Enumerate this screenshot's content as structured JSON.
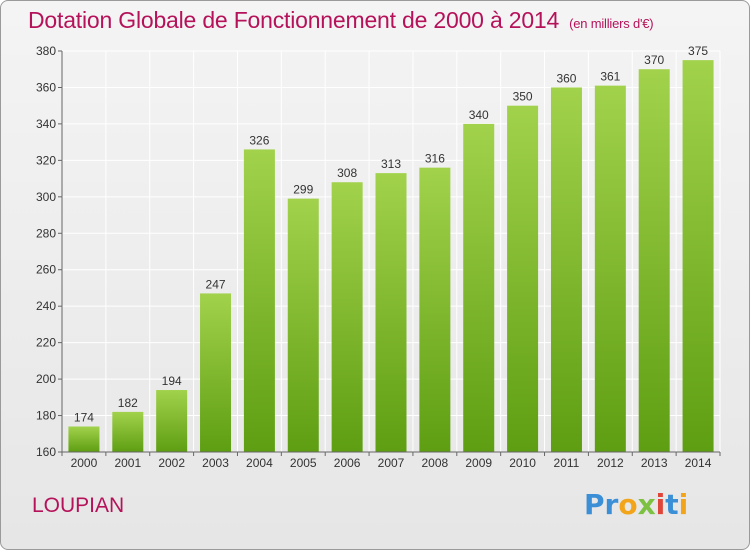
{
  "title": "Dotation Globale de Fonctionnement de 2000 à 2014",
  "subtitle": "(en milliers d'€)",
  "commune": "LOUPIAN",
  "logo": {
    "text": "Proxiti",
    "letters": [
      {
        "ch": "P",
        "color": "#3a8fd6"
      },
      {
        "ch": "r",
        "color": "#3a8fd6"
      },
      {
        "ch": "o",
        "color": "#f2a51a"
      },
      {
        "ch": "x",
        "color": "#7cc142"
      },
      {
        "ch": "i",
        "color": "#e0453a"
      },
      {
        "ch": "t",
        "color": "#3a8fd6"
      },
      {
        "ch": "i",
        "color": "#f2a51a"
      }
    ]
  },
  "colors": {
    "bar_top": "#a2d24c",
    "bar_bottom": "#5e9e12",
    "title": "#b5125a",
    "grid": "#ffffff",
    "axis": "#666666"
  },
  "chart_data": {
    "type": "bar",
    "categories": [
      "2000",
      "2001",
      "2002",
      "2003",
      "2004",
      "2005",
      "2006",
      "2007",
      "2008",
      "2009",
      "2010",
      "2011",
      "2012",
      "2013",
      "2014"
    ],
    "values": [
      174,
      182,
      194,
      247,
      326,
      299,
      308,
      313,
      316,
      340,
      350,
      360,
      361,
      370,
      375
    ],
    "ylim": [
      160,
      380
    ],
    "yticks": [
      160,
      180,
      200,
      220,
      240,
      260,
      280,
      300,
      320,
      340,
      360,
      380
    ],
    "grid": true,
    "xlabel": "",
    "ylabel": ""
  }
}
